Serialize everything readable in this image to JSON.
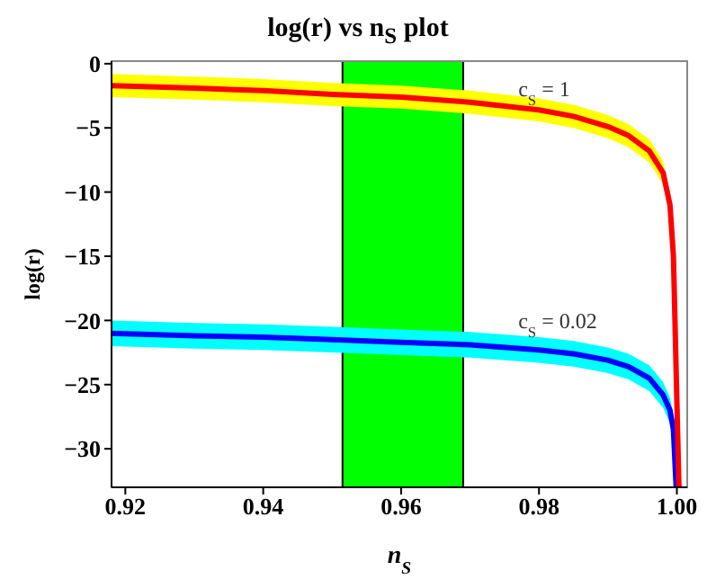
{
  "chart_data": {
    "type": "line",
    "title": "log(r) vs n$_{S}$ plot",
    "xlabel": "n$_{S}$",
    "ylabel": "log(r)",
    "series": [
      {
        "color": "#ff0000",
        "x": [
          0.918,
          0.93,
          0.94,
          0.95,
          0.96,
          0.97,
          0.98,
          0.985,
          0.99,
          0.993,
          0.996,
          0.998,
          0.999,
          0.9995,
          1.0003
        ],
        "values": [
          -1.7,
          -1.9,
          -2.1,
          -2.4,
          -2.6,
          -3.0,
          -3.6,
          -4.1,
          -4.9,
          -5.6,
          -6.8,
          -8.5,
          -11,
          -15,
          -33
        ],
        "lower": [
          -2.6,
          -2.8,
          -3.0,
          -3.3,
          -3.5,
          -3.9,
          -4.5,
          -5.0,
          -5.8,
          -6.5,
          -7.7,
          -9.4,
          -12,
          -16,
          -28
        ],
        "upper": [
          -0.8,
          -1.0,
          -1.2,
          -1.5,
          -1.7,
          -2.1,
          -2.7,
          -3.2,
          -4.0,
          -4.7,
          -5.9,
          -7.6,
          -10,
          -14,
          -28
        ]
      },
      {
        "color": "#0000ff",
        "x": [
          0.918,
          0.93,
          0.94,
          0.95,
          0.96,
          0.97,
          0.98,
          0.985,
          0.99,
          0.993,
          0.996,
          0.998,
          0.999,
          0.9995,
          0.9999
        ],
        "values": [
          -21.0,
          -21.2,
          -21.3,
          -21.5,
          -21.7,
          -21.9,
          -22.3,
          -22.6,
          -23.1,
          -23.6,
          -24.5,
          -25.8,
          -27,
          -28.5,
          -33
        ],
        "lower": [
          -22.0,
          -22.2,
          -22.3,
          -22.5,
          -22.7,
          -22.9,
          -23.3,
          -23.6,
          -24.1,
          -24.6,
          -25.5,
          -26.8,
          -28,
          -29.5,
          -33
        ],
        "upper": [
          -20.0,
          -20.2,
          -20.3,
          -20.5,
          -20.7,
          -20.9,
          -21.3,
          -21.6,
          -22.1,
          -22.6,
          -23.5,
          -24.8,
          -26,
          -27.5,
          -33
        ]
      }
    ],
    "bands": [
      {
        "axis": "x",
        "from": 0.9515,
        "to": 0.969,
        "color": "#00ff00"
      }
    ],
    "annotations": [
      {
        "text": "c$_{S}$ = 1",
        "x": 0.977,
        "y": -2.5
      },
      {
        "text": "c$_{S}$ = 0.02",
        "x": 0.977,
        "y": -20.6
      }
    ],
    "xlim": [
      0.918,
      1.0015
    ],
    "xticks": [
      0.92,
      0.94,
      0.96,
      0.98,
      {
        "value": 1,
        "label": "1.00"
      }
    ],
    "ylim": [
      -33,
      0.2
    ],
    "yticks": [
      0,
      -5,
      -10,
      -15,
      -20,
      -25,
      -30
    ],
    "grid": false,
    "legend": false,
    "marker": "none",
    "line_style": "solid"
  }
}
